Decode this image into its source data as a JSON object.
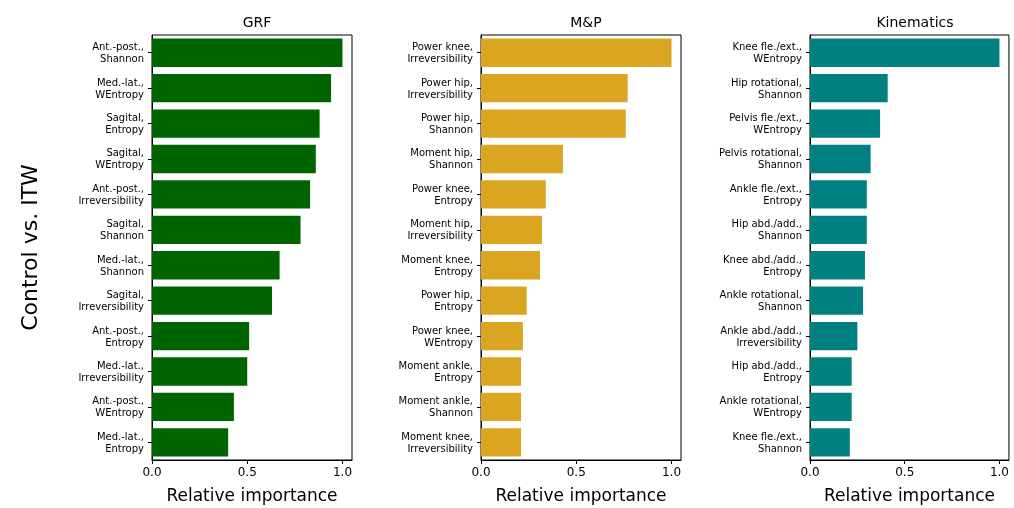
{
  "chart_data": [
    {
      "type": "bar",
      "orientation": "horizontal",
      "title": "GRF",
      "xlabel": "Relative importance",
      "ylabel": "Control vs. ITW",
      "color": "#006400",
      "categories": [
        "Ant.-post., Shannon",
        "Med.-lat., WEntropy",
        "Sagital, Entropy",
        "Sagital, WEntropy",
        "Ant.-post., Irreversibility",
        "Sagital, Shannon",
        "Med.-lat., Shannon",
        "Sagital, Irreversibility",
        "Ant.-post., Entropy",
        "Med.-lat., Irreversibility",
        "Ant.-post., WEntropy",
        "Med.-lat., Entropy"
      ],
      "values": [
        1.0,
        0.94,
        0.88,
        0.86,
        0.83,
        0.78,
        0.67,
        0.63,
        0.51,
        0.5,
        0.43,
        0.4
      ],
      "xlim": [
        0,
        1.05
      ],
      "xticks": [
        {
          "value": 0,
          "label": "0.0"
        },
        {
          "value": 0.5,
          "label": "0.5"
        },
        {
          "value": 1,
          "label": "1.0"
        }
      ],
      "grid": false
    },
    {
      "type": "bar",
      "orientation": "horizontal",
      "title": "M&P",
      "xlabel": "Relative importance",
      "color": "#daa520",
      "categories": [
        "Power knee, Irreversibility",
        "Power hip, Irreversibility",
        "Power hip, Shannon",
        "Moment hip, Shannon",
        "Power knee, Entropy",
        "Moment hip, Irreversibility",
        "Moment knee, Entropy",
        "Power hip, Entropy",
        "Power knee, WEntropy",
        "Moment ankle, Entropy",
        "Moment ankle, Shannon",
        "Moment knee, Irreversibility"
      ],
      "values": [
        1.0,
        0.77,
        0.76,
        0.43,
        0.34,
        0.32,
        0.31,
        0.24,
        0.22,
        0.21,
        0.21,
        0.21
      ],
      "xlim": [
        0,
        1.05
      ],
      "xticks": [
        {
          "value": 0,
          "label": "0.0"
        },
        {
          "value": 0.5,
          "label": "0.5"
        },
        {
          "value": 1,
          "label": "1.0"
        }
      ],
      "grid": false
    },
    {
      "type": "bar",
      "orientation": "horizontal",
      "title": "Kinematics",
      "xlabel": "Relative importance",
      "color": "#008080",
      "categories": [
        "Knee fle./ext., WEntropy",
        "Hip rotational, Shannon",
        "Pelvis fle./ext., WEntropy",
        "Pelvis rotational, Shannon",
        "Ankle fle./ext., Entropy",
        "Hip abd./add., Shannon",
        "Knee abd./add., Entropy",
        "Ankle rotational, Shannon",
        "Ankle abd./add., Irreversibility",
        "Hip abd./add., Entropy",
        "Ankle rotational, WEntropy",
        "Knee fle./ext., Shannon"
      ],
      "values": [
        1.0,
        0.41,
        0.37,
        0.32,
        0.3,
        0.3,
        0.29,
        0.28,
        0.25,
        0.22,
        0.22,
        0.21
      ],
      "xlim": [
        0,
        1.05
      ],
      "xticks": [
        {
          "value": 0,
          "label": "0.0"
        },
        {
          "value": 0.5,
          "label": "0.5"
        },
        {
          "value": 1,
          "label": "1.0"
        }
      ],
      "grid": false
    }
  ]
}
